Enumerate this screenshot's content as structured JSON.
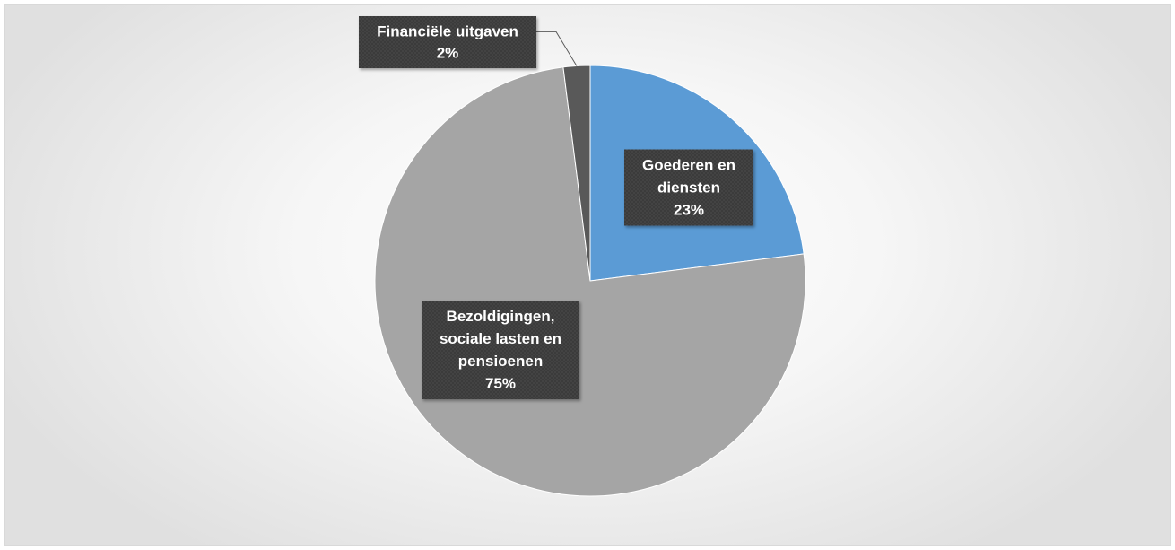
{
  "chart_data": {
    "type": "pie",
    "title": "",
    "slices": [
      {
        "label_lines": [
          "Goederen en",
          "diensten"
        ],
        "value": 23,
        "value_label": "23%",
        "color": "#5b9bd5"
      },
      {
        "label_lines": [
          "Bezoldigingen,",
          "sociale lasten en",
          "pensioenen"
        ],
        "value": 75,
        "value_label": "75%",
        "color": "#a5a5a5"
      },
      {
        "label_lines": [
          "Financiële uitgaven"
        ],
        "value": 2,
        "value_label": "2%",
        "color": "#595959"
      }
    ],
    "legend": "none",
    "label_style": "dark-callout"
  }
}
